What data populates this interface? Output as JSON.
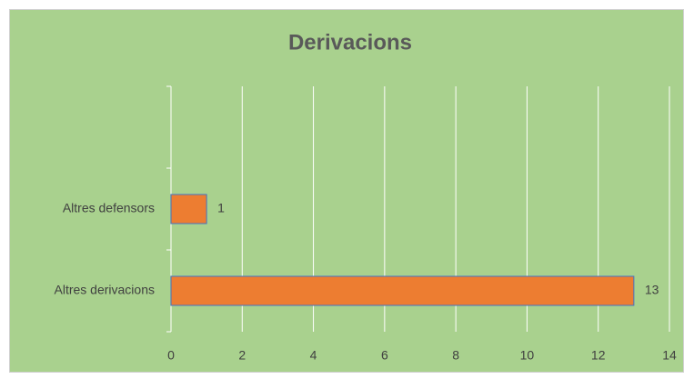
{
  "chart_data": {
    "type": "bar",
    "orientation": "horizontal",
    "title": "Derivacions",
    "categories": [
      null,
      "Altres defensors",
      "Altres derivacions"
    ],
    "values": [
      null,
      1,
      13
    ],
    "color": "#ed7d31",
    "edge_color": "#4472c4",
    "background": "#a9d18e",
    "xlim": [
      0,
      14
    ],
    "xticks": [
      0,
      2,
      4,
      6,
      8,
      10,
      12,
      14
    ],
    "grid": true
  }
}
